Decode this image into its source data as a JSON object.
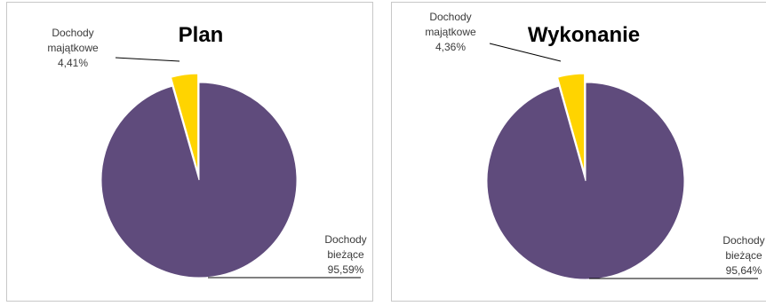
{
  "colors": {
    "biezace": "#5f4b7c",
    "majatkowe": "#ffd400",
    "leader": "#000000"
  },
  "chart_data": [
    {
      "type": "pie",
      "title": "Plan",
      "slices": [
        {
          "label_lines": [
            "Dochody",
            "majątkowe"
          ],
          "value": 4.41,
          "value_text": "4,41%",
          "color": "#ffd400",
          "exploded": true
        },
        {
          "label_lines": [
            "Dochody",
            "bieżące"
          ],
          "value": 95.59,
          "value_text": "95,59%",
          "color": "#5f4b7c",
          "exploded": false
        }
      ]
    },
    {
      "type": "pie",
      "title": "Wykonanie",
      "slices": [
        {
          "label_lines": [
            "Dochody",
            "majątkowe"
          ],
          "value": 4.36,
          "value_text": "4,36%",
          "color": "#ffd400",
          "exploded": true
        },
        {
          "label_lines": [
            "Dochody",
            "bieżące"
          ],
          "value": 95.64,
          "value_text": "95,64%",
          "color": "#5f4b7c",
          "exploded": false
        }
      ]
    }
  ]
}
